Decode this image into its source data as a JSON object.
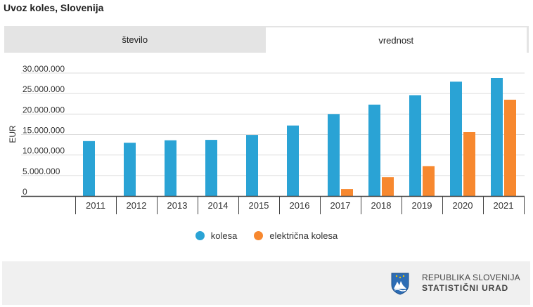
{
  "title": "Uvoz koles, Slovenija",
  "tabs": [
    {
      "label": "število",
      "active": false
    },
    {
      "label": "vrednost",
      "active": true
    }
  ],
  "legend": [
    {
      "label": "kolesa",
      "color": "#2aa3d5"
    },
    {
      "label": "električna kolesa",
      "color": "#f7882f"
    }
  ],
  "footer": {
    "org_line1": "REPUBLIKA SLOVENIJA",
    "org_line2": "STATISTIČNI URAD",
    "logo_icon": "slovenia-coat-of-arms-icon"
  },
  "chart_data": {
    "type": "bar",
    "title": "",
    "xlabel": "",
    "ylabel": "EUR",
    "ylim": [
      0,
      30000000
    ],
    "yticks": [
      0,
      5000000,
      10000000,
      15000000,
      20000000,
      25000000,
      30000000
    ],
    "ytick_labels": [
      "0",
      "5.000.000",
      "10.000.000",
      "15.000.000",
      "20.000.000",
      "25.000.000",
      "30.000.000"
    ],
    "grid": true,
    "legend_position": "bottom",
    "categories": [
      "2011",
      "2012",
      "2013",
      "2014",
      "2015",
      "2016",
      "2017",
      "2018",
      "2019",
      "2020",
      "2021"
    ],
    "series": [
      {
        "name": "kolesa",
        "color": "#2aa3d5",
        "values": [
          13400000,
          13000000,
          13600000,
          13700000,
          14900000,
          17200000,
          20000000,
          22300000,
          24600000,
          27900000,
          28800000
        ]
      },
      {
        "name": "električna kolesa",
        "color": "#f7882f",
        "values": [
          0,
          0,
          0,
          0,
          0,
          0,
          1700000,
          4600000,
          7300000,
          15600000,
          23500000
        ]
      }
    ]
  }
}
